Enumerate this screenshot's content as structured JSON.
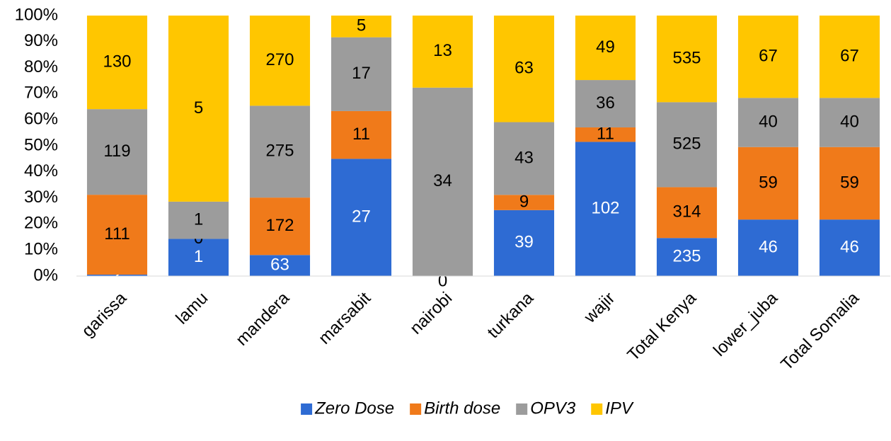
{
  "chart_data": {
    "type": "bar",
    "stacking": "percent",
    "categories": [
      "garissa",
      "lamu",
      "mandera",
      "marsabit",
      "nairobi",
      "turkana",
      "wajir",
      "Total Kenya",
      "lower_juba",
      "Total Somalia"
    ],
    "series": [
      {
        "name": "Zero Dose",
        "color": "#2e6bd3",
        "values": [
          2,
          1,
          63,
          27,
          0,
          39,
          102,
          235,
          46,
          46
        ]
      },
      {
        "name": "Birth dose",
        "color": "#f07a1a",
        "values": [
          111,
          0,
          172,
          11,
          null,
          9,
          11,
          314,
          59,
          59
        ]
      },
      {
        "name": "OPV3",
        "color": "#9c9c9c",
        "values": [
          119,
          1,
          275,
          17,
          34,
          43,
          36,
          525,
          40,
          40
        ]
      },
      {
        "name": "IPV",
        "color": "#ffc600",
        "values": [
          130,
          5,
          270,
          5,
          13,
          63,
          49,
          535,
          67,
          67
        ]
      }
    ],
    "ylim": [
      0,
      100
    ],
    "yticks": [
      {
        "value": 0,
        "label": "0%"
      },
      {
        "value": 10,
        "label": "10%"
      },
      {
        "value": 20,
        "label": "20%"
      },
      {
        "value": 30,
        "label": "30%"
      },
      {
        "value": 40,
        "label": "40%"
      },
      {
        "value": 50,
        "label": "50%"
      },
      {
        "value": 60,
        "label": "60%"
      },
      {
        "value": 70,
        "label": "70%"
      },
      {
        "value": 80,
        "label": "80%"
      },
      {
        "value": 90,
        "label": "90%"
      },
      {
        "value": 100,
        "label": "100%"
      }
    ],
    "grid": false,
    "legend": "bottom"
  }
}
